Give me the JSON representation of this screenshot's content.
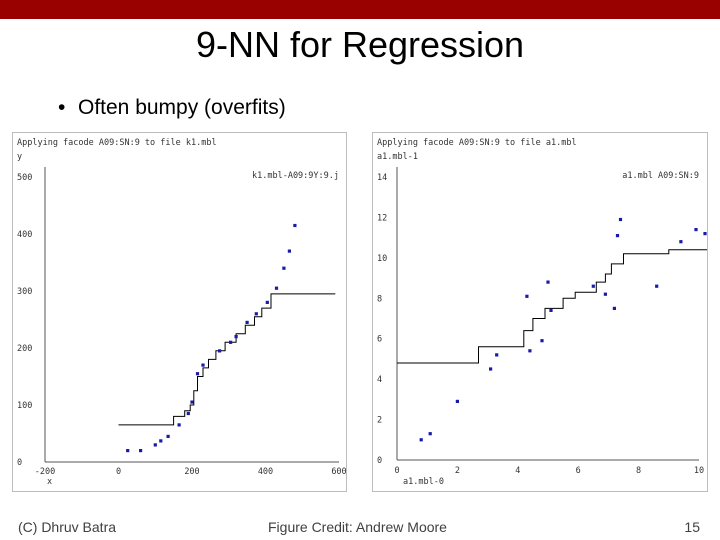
{
  "slide": {
    "title": "9-NN for Regression",
    "bullet": "Often bumpy (overfits)",
    "bullet_marker": "•",
    "footer_left": "(C) Dhruv Batra",
    "footer_center": "Figure Credit: Andrew Moore",
    "page_number": "15",
    "colors": {
      "top_bar": "#990000",
      "points": "#1a1aa8",
      "fit_line": "#000000"
    }
  },
  "chart_data": [
    {
      "type": "scatter",
      "header": "Applying facode A09:SN:9 to file k1.mbl",
      "ylabel": "y",
      "xlabel": "x",
      "legend": "k1.mbl-A09:9Y:9.j",
      "xlim": [
        -200,
        600
      ],
      "ylim": [
        0,
        500
      ],
      "xticks": [
        "-200",
        "0",
        "200",
        "400",
        "600"
      ],
      "xtick_values": [
        -200,
        0,
        200,
        400,
        600
      ],
      "yticks": [
        "0",
        "100",
        "200",
        "300",
        "400",
        "500"
      ],
      "ytick_values": [
        0,
        100,
        200,
        300,
        400,
        500
      ],
      "points": [
        {
          "x": 25,
          "y": 20
        },
        {
          "x": 60,
          "y": 20
        },
        {
          "x": 100,
          "y": 30
        },
        {
          "x": 115,
          "y": 37
        },
        {
          "x": 135,
          "y": 45
        },
        {
          "x": 165,
          "y": 65
        },
        {
          "x": 190,
          "y": 85
        },
        {
          "x": 200,
          "y": 105
        },
        {
          "x": 215,
          "y": 155
        },
        {
          "x": 230,
          "y": 170
        },
        {
          "x": 275,
          "y": 195
        },
        {
          "x": 305,
          "y": 210
        },
        {
          "x": 320,
          "y": 220
        },
        {
          "x": 350,
          "y": 245
        },
        {
          "x": 375,
          "y": 260
        },
        {
          "x": 405,
          "y": 280
        },
        {
          "x": 430,
          "y": 305
        },
        {
          "x": 450,
          "y": 340
        },
        {
          "x": 465,
          "y": 370
        },
        {
          "x": 480,
          "y": 415
        }
      ],
      "fit": [
        {
          "x": 0,
          "y": 65
        },
        {
          "x": 150,
          "y": 65
        },
        {
          "x": 150,
          "y": 80
        },
        {
          "x": 180,
          "y": 80
        },
        {
          "x": 180,
          "y": 90
        },
        {
          "x": 195,
          "y": 90
        },
        {
          "x": 195,
          "y": 100
        },
        {
          "x": 205,
          "y": 100
        },
        {
          "x": 205,
          "y": 125
        },
        {
          "x": 215,
          "y": 125
        },
        {
          "x": 215,
          "y": 150
        },
        {
          "x": 230,
          "y": 150
        },
        {
          "x": 230,
          "y": 165
        },
        {
          "x": 245,
          "y": 165
        },
        {
          "x": 245,
          "y": 180
        },
        {
          "x": 265,
          "y": 180
        },
        {
          "x": 265,
          "y": 195
        },
        {
          "x": 290,
          "y": 195
        },
        {
          "x": 290,
          "y": 210
        },
        {
          "x": 320,
          "y": 210
        },
        {
          "x": 320,
          "y": 225
        },
        {
          "x": 345,
          "y": 225
        },
        {
          "x": 345,
          "y": 240
        },
        {
          "x": 370,
          "y": 240
        },
        {
          "x": 370,
          "y": 255
        },
        {
          "x": 390,
          "y": 255
        },
        {
          "x": 390,
          "y": 270
        },
        {
          "x": 415,
          "y": 270
        },
        {
          "x": 415,
          "y": 295
        },
        {
          "x": 590,
          "y": 295
        }
      ]
    },
    {
      "type": "scatter",
      "header": "Applying facode A09:SN:9 to file a1.mbl",
      "ylabel": "a1.mbl-1",
      "xlabel": "a1.mbl-0",
      "legend": "a1.mbl A09:SN:9",
      "xlim": [
        0,
        10
      ],
      "ylim": [
        0,
        14
      ],
      "xticks": [
        "0",
        "2",
        "4",
        "6",
        "8",
        "10"
      ],
      "xtick_values": [
        0,
        2,
        4,
        6,
        8,
        10
      ],
      "yticks": [
        "0",
        "2",
        "4",
        "6",
        "8",
        "10",
        "12",
        "14"
      ],
      "ytick_values": [
        0,
        2,
        4,
        6,
        8,
        10,
        12,
        14
      ],
      "points": [
        {
          "x": 0.8,
          "y": 1.0
        },
        {
          "x": 1.1,
          "y": 1.3
        },
        {
          "x": 2.0,
          "y": 2.9
        },
        {
          "x": 3.1,
          "y": 4.5
        },
        {
          "x": 3.3,
          "y": 5.2
        },
        {
          "x": 4.3,
          "y": 8.1
        },
        {
          "x": 4.4,
          "y": 5.4
        },
        {
          "x": 4.8,
          "y": 5.9
        },
        {
          "x": 5.0,
          "y": 8.8
        },
        {
          "x": 5.1,
          "y": 7.4
        },
        {
          "x": 6.5,
          "y": 8.6
        },
        {
          "x": 6.9,
          "y": 8.2
        },
        {
          "x": 7.2,
          "y": 7.5
        },
        {
          "x": 7.3,
          "y": 11.1
        },
        {
          "x": 7.4,
          "y": 11.9
        },
        {
          "x": 8.6,
          "y": 8.6
        },
        {
          "x": 9.4,
          "y": 10.8
        },
        {
          "x": 9.9,
          "y": 11.4
        },
        {
          "x": 10.2,
          "y": 11.2
        }
      ],
      "fit": [
        {
          "x": 0,
          "y": 4.8
        },
        {
          "x": 2.7,
          "y": 4.8
        },
        {
          "x": 2.7,
          "y": 5.6
        },
        {
          "x": 4.2,
          "y": 5.6
        },
        {
          "x": 4.2,
          "y": 6.4
        },
        {
          "x": 4.5,
          "y": 6.4
        },
        {
          "x": 4.5,
          "y": 7.0
        },
        {
          "x": 4.9,
          "y": 7.0
        },
        {
          "x": 4.9,
          "y": 7.5
        },
        {
          "x": 5.5,
          "y": 7.5
        },
        {
          "x": 5.5,
          "y": 8.0
        },
        {
          "x": 5.9,
          "y": 8.0
        },
        {
          "x": 5.9,
          "y": 8.3
        },
        {
          "x": 6.6,
          "y": 8.3
        },
        {
          "x": 6.6,
          "y": 8.8
        },
        {
          "x": 6.9,
          "y": 8.8
        },
        {
          "x": 6.9,
          "y": 9.2
        },
        {
          "x": 7.1,
          "y": 9.2
        },
        {
          "x": 7.1,
          "y": 9.7
        },
        {
          "x": 7.5,
          "y": 9.7
        },
        {
          "x": 7.5,
          "y": 10.2
        },
        {
          "x": 9.0,
          "y": 10.2
        },
        {
          "x": 9.0,
          "y": 10.4
        },
        {
          "x": 10.3,
          "y": 10.4
        }
      ]
    }
  ]
}
